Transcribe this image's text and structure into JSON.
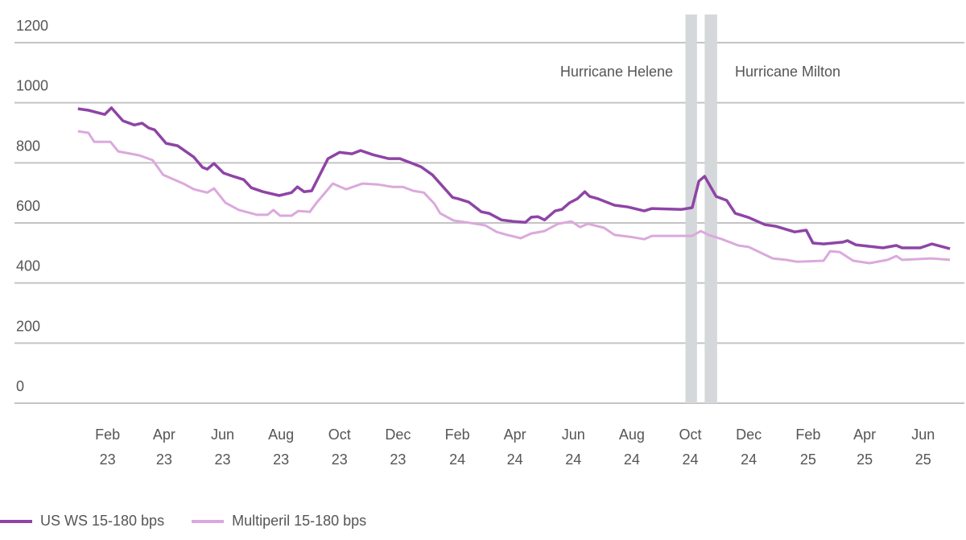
{
  "chart_data": {
    "type": "line",
    "title": "",
    "xlabel": "",
    "ylabel": "",
    "ylim": [
      0,
      1200
    ],
    "yticks": [
      0,
      200,
      400,
      600,
      800,
      1000,
      1200
    ],
    "grid": "horizontal",
    "legend_position": "bottom-left",
    "xticks": [
      {
        "date": "2023-02-01",
        "month": "Feb",
        "year": "23"
      },
      {
        "date": "2023-04-01",
        "month": "Apr",
        "year": "23"
      },
      {
        "date": "2023-06-01",
        "month": "Jun",
        "year": "23"
      },
      {
        "date": "2023-08-01",
        "month": "Aug",
        "year": "23"
      },
      {
        "date": "2023-10-01",
        "month": "Oct",
        "year": "23"
      },
      {
        "date": "2023-12-01",
        "month": "Dec",
        "year": "23"
      },
      {
        "date": "2024-02-01",
        "month": "Feb",
        "year": "24"
      },
      {
        "date": "2024-04-01",
        "month": "Apr",
        "year": "24"
      },
      {
        "date": "2024-06-01",
        "month": "Jun",
        "year": "24"
      },
      {
        "date": "2024-08-01",
        "month": "Aug",
        "year": "24"
      },
      {
        "date": "2024-10-01",
        "month": "Oct",
        "year": "24"
      },
      {
        "date": "2024-12-01",
        "month": "Dec",
        "year": "24"
      },
      {
        "date": "2025-02-01",
        "month": "Feb",
        "year": "25"
      },
      {
        "date": "2025-04-01",
        "month": "Apr",
        "year": "25"
      },
      {
        "date": "2025-06-01",
        "month": "Jun",
        "year": "25"
      }
    ],
    "annotations": [
      {
        "label": "Hurricane Helene",
        "band": [
          "2024-09-26",
          "2024-10-08"
        ]
      },
      {
        "label": "Hurricane Milton",
        "band": [
          "2024-10-16",
          "2024-10-29"
        ]
      }
    ],
    "band_color": "#d5d8db",
    "series": [
      {
        "name": "US WS 15-180 bps",
        "color": "#8e44a6",
        "points": [
          [
            "2023-01-01",
            980
          ],
          [
            "2023-01-12",
            975
          ],
          [
            "2023-01-29",
            961
          ],
          [
            "2023-02-05",
            983
          ],
          [
            "2023-02-17",
            940
          ],
          [
            "2023-03-01",
            926
          ],
          [
            "2023-03-09",
            932
          ],
          [
            "2023-03-16",
            916
          ],
          [
            "2023-03-22",
            910
          ],
          [
            "2023-04-03",
            865
          ],
          [
            "2023-04-15",
            857
          ],
          [
            "2023-05-02",
            819
          ],
          [
            "2023-05-11",
            785
          ],
          [
            "2023-05-16",
            779
          ],
          [
            "2023-05-23",
            798
          ],
          [
            "2023-06-02",
            766
          ],
          [
            "2023-06-12",
            755
          ],
          [
            "2023-06-23",
            744
          ],
          [
            "2023-07-01",
            717
          ],
          [
            "2023-07-13",
            704
          ],
          [
            "2023-07-30",
            691
          ],
          [
            "2023-08-12",
            701
          ],
          [
            "2023-08-18",
            720
          ],
          [
            "2023-08-25",
            704
          ],
          [
            "2023-09-02",
            707
          ],
          [
            "2023-09-19",
            814
          ],
          [
            "2023-10-01",
            835
          ],
          [
            "2023-10-14",
            830
          ],
          [
            "2023-10-23",
            841
          ],
          [
            "2023-11-05",
            827
          ],
          [
            "2023-11-21",
            814
          ],
          [
            "2023-12-03",
            814
          ],
          [
            "2023-12-25",
            787
          ],
          [
            "2024-01-06",
            760
          ],
          [
            "2024-01-27",
            685
          ],
          [
            "2024-02-02",
            680
          ],
          [
            "2024-02-13",
            669
          ],
          [
            "2024-02-26",
            637
          ],
          [
            "2024-03-05",
            632
          ],
          [
            "2024-03-18",
            610
          ],
          [
            "2024-03-30",
            605
          ],
          [
            "2024-04-12",
            602
          ],
          [
            "2024-04-18",
            619
          ],
          [
            "2024-04-25",
            621
          ],
          [
            "2024-05-02",
            610
          ],
          [
            "2024-05-13",
            640
          ],
          [
            "2024-05-20",
            645
          ],
          [
            "2024-05-28",
            667
          ],
          [
            "2024-06-05",
            680
          ],
          [
            "2024-06-13",
            704
          ],
          [
            "2024-06-18",
            688
          ],
          [
            "2024-06-27",
            680
          ],
          [
            "2024-07-14",
            659
          ],
          [
            "2024-07-28",
            653
          ],
          [
            "2024-08-14",
            640
          ],
          [
            "2024-08-22",
            648
          ],
          [
            "2024-09-22",
            645
          ],
          [
            "2024-10-03",
            651
          ],
          [
            "2024-10-10",
            739
          ],
          [
            "2024-10-16",
            755
          ],
          [
            "2024-10-28",
            688
          ],
          [
            "2024-11-08",
            675
          ],
          [
            "2024-11-17",
            632
          ],
          [
            "2024-12-01",
            618
          ],
          [
            "2024-12-18",
            594
          ],
          [
            "2024-12-29",
            589
          ],
          [
            "2025-01-18",
            570
          ],
          [
            "2025-01-30",
            576
          ],
          [
            "2025-02-06",
            533
          ],
          [
            "2025-02-17",
            530
          ],
          [
            "2025-03-09",
            536
          ],
          [
            "2025-03-14",
            541
          ],
          [
            "2025-03-23",
            527
          ],
          [
            "2025-04-20",
            517
          ],
          [
            "2025-05-04",
            525
          ],
          [
            "2025-05-10",
            517
          ],
          [
            "2025-05-29",
            517
          ],
          [
            "2025-06-10",
            530
          ],
          [
            "2025-06-29",
            514
          ]
        ]
      },
      {
        "name": "Multiperil 15-180 bps",
        "color": "#dba9dc",
        "points": [
          [
            "2023-01-01",
            905
          ],
          [
            "2023-01-12",
            900
          ],
          [
            "2023-01-18",
            870
          ],
          [
            "2023-02-04",
            870
          ],
          [
            "2023-02-12",
            838
          ],
          [
            "2023-03-06",
            825
          ],
          [
            "2023-03-20",
            809
          ],
          [
            "2023-03-31",
            760
          ],
          [
            "2023-04-21",
            731
          ],
          [
            "2023-05-02",
            712
          ],
          [
            "2023-05-16",
            701
          ],
          [
            "2023-05-23",
            715
          ],
          [
            "2023-06-04",
            667
          ],
          [
            "2023-06-18",
            643
          ],
          [
            "2023-07-07",
            627
          ],
          [
            "2023-07-18",
            627
          ],
          [
            "2023-07-24",
            643
          ],
          [
            "2023-07-31",
            624
          ],
          [
            "2023-08-12",
            624
          ],
          [
            "2023-08-19",
            640
          ],
          [
            "2023-08-31",
            637
          ],
          [
            "2023-09-07",
            667
          ],
          [
            "2023-09-24",
            731
          ],
          [
            "2023-10-08",
            712
          ],
          [
            "2023-10-25",
            731
          ],
          [
            "2023-11-10",
            728
          ],
          [
            "2023-11-25",
            720
          ],
          [
            "2023-12-06",
            720
          ],
          [
            "2023-12-17",
            707
          ],
          [
            "2023-12-28",
            701
          ],
          [
            "2024-01-08",
            664
          ],
          [
            "2024-01-14",
            632
          ],
          [
            "2024-01-28",
            608
          ],
          [
            "2024-02-11",
            602
          ],
          [
            "2024-03-01",
            592
          ],
          [
            "2024-03-13",
            570
          ],
          [
            "2024-03-24",
            560
          ],
          [
            "2024-04-07",
            549
          ],
          [
            "2024-04-18",
            565
          ],
          [
            "2024-05-02",
            573
          ],
          [
            "2024-05-16",
            597
          ],
          [
            "2024-05-30",
            605
          ],
          [
            "2024-06-08",
            586
          ],
          [
            "2024-06-16",
            597
          ],
          [
            "2024-07-03",
            584
          ],
          [
            "2024-07-14",
            560
          ],
          [
            "2024-07-30",
            554
          ],
          [
            "2024-08-14",
            546
          ],
          [
            "2024-08-22",
            557
          ],
          [
            "2024-09-19",
            557
          ],
          [
            "2024-10-03",
            557
          ],
          [
            "2024-10-12",
            573
          ],
          [
            "2024-10-20",
            560
          ],
          [
            "2024-11-03",
            546
          ],
          [
            "2024-11-20",
            525
          ],
          [
            "2024-12-01",
            520
          ],
          [
            "2024-12-26",
            482
          ],
          [
            "2025-01-09",
            477
          ],
          [
            "2025-01-20",
            471
          ],
          [
            "2025-02-17",
            474
          ],
          [
            "2025-02-24",
            506
          ],
          [
            "2025-03-06",
            503
          ],
          [
            "2025-03-20",
            474
          ],
          [
            "2025-04-06",
            466
          ],
          [
            "2025-04-25",
            477
          ],
          [
            "2025-05-04",
            490
          ],
          [
            "2025-05-10",
            477
          ],
          [
            "2025-06-10",
            482
          ],
          [
            "2025-06-29",
            477
          ]
        ]
      }
    ]
  }
}
